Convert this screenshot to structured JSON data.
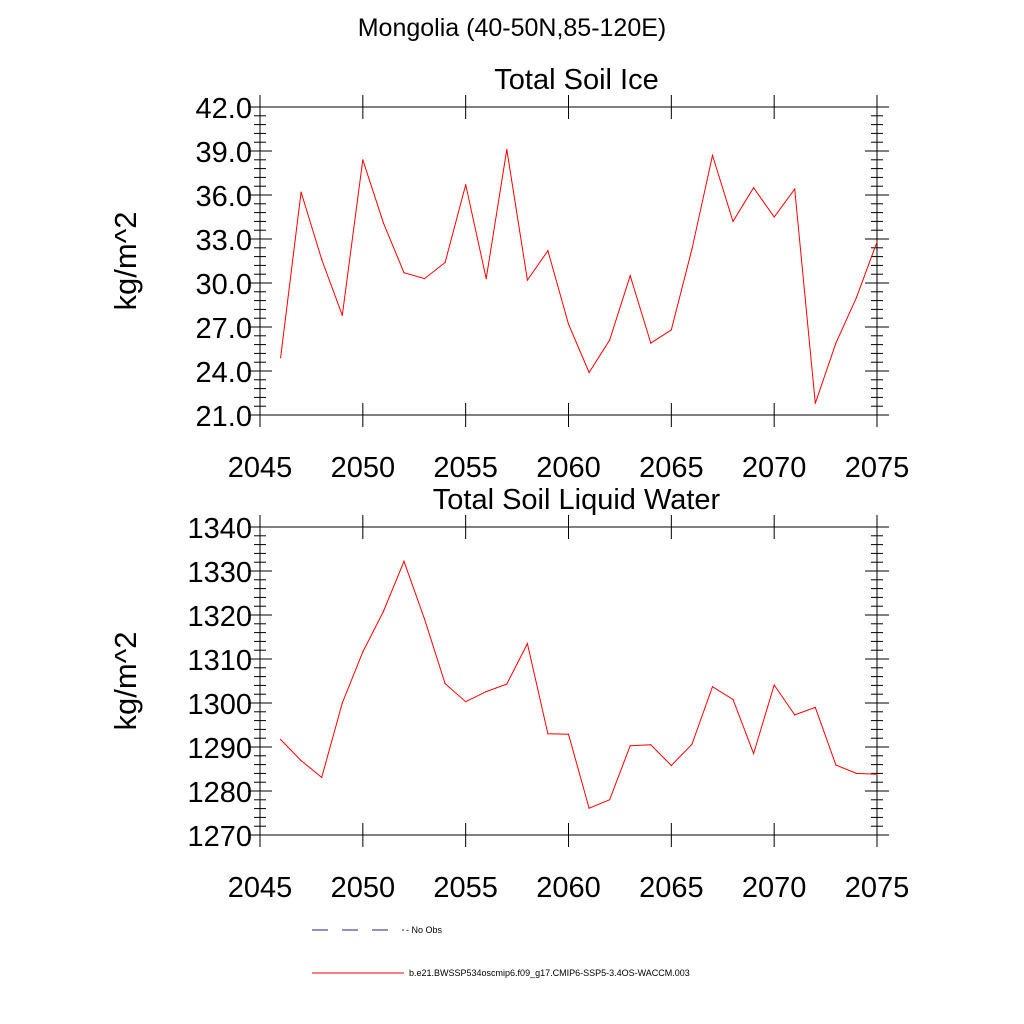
{
  "title": "Mongolia (40-50N,85-120E)",
  "colors": {
    "series": "#ff0000",
    "legend_obs": "#1f2a7a",
    "axis": "#000000"
  },
  "chart_data": [
    {
      "type": "line",
      "title": "Total Soil Ice",
      "xlabel": "",
      "ylabel": "kg/m^2",
      "xlim": [
        2045,
        2075
      ],
      "ylim": [
        21.0,
        42.0
      ],
      "xticks": [
        "2045",
        "2050",
        "2055",
        "2060",
        "2065",
        "2070",
        "2075"
      ],
      "yticks": [
        "21.0",
        "24.0",
        "27.0",
        "30.0",
        "33.0",
        "36.0",
        "39.0",
        "42.0"
      ],
      "x": [
        2046,
        2047,
        2048,
        2049,
        2050,
        2051,
        2052,
        2053,
        2054,
        2055,
        2056,
        2057,
        2058,
        2059,
        2060,
        2061,
        2062,
        2063,
        2064,
        2065,
        2066,
        2067,
        2068,
        2069,
        2070,
        2071,
        2072,
        2073,
        2074,
        2075
      ],
      "series": [
        {
          "name": "b.e21.BWSSP534oscmip6.f09_g17.CMIP6-SSP5-3.4OS-WACCM.003",
          "values": [
            24.9,
            36.2,
            31.6,
            27.8,
            38.4,
            34.1,
            30.7,
            30.3,
            31.4,
            36.7,
            30.3,
            39.1,
            30.2,
            32.2,
            27.2,
            23.9,
            26.1,
            30.5,
            25.9,
            26.8,
            32.3,
            38.7,
            34.2,
            36.5,
            34.5,
            36.4,
            21.8,
            25.9,
            29.0,
            32.8
          ]
        }
      ]
    },
    {
      "type": "line",
      "title": "Total Soil Liquid Water",
      "xlabel": "",
      "ylabel": "kg/m^2",
      "xlim": [
        2045,
        2075
      ],
      "ylim": [
        1270,
        1340
      ],
      "xticks": [
        "2045",
        "2050",
        "2055",
        "2060",
        "2065",
        "2070",
        "2075"
      ],
      "yticks": [
        "1270",
        "1280",
        "1290",
        "1300",
        "1310",
        "1320",
        "1330",
        "1340"
      ],
      "x": [
        2046,
        2047,
        2048,
        2049,
        2050,
        2051,
        2052,
        2053,
        2054,
        2055,
        2056,
        2057,
        2058,
        2059,
        2060,
        2061,
        2062,
        2063,
        2064,
        2065,
        2066,
        2067,
        2068,
        2069,
        2070,
        2071,
        2072,
        2073,
        2074,
        2075
      ],
      "series": [
        {
          "name": "b.e21.BWSSP534oscmip6.f09_g17.CMIP6-SSP5-3.4OS-WACCM.003",
          "values": [
            1291.7,
            1286.9,
            1283.1,
            1300.0,
            1311.6,
            1320.8,
            1332.2,
            1319.1,
            1304.4,
            1300.3,
            1302.6,
            1304.3,
            1313.5,
            1293.0,
            1292.9,
            1276.1,
            1278.0,
            1290.3,
            1290.5,
            1285.8,
            1290.6,
            1303.7,
            1300.8,
            1288.5,
            1304.1,
            1297.3,
            1299.0,
            1285.9,
            1284.0,
            1283.8
          ]
        }
      ]
    }
  ],
  "legend": {
    "entries": [
      {
        "label": "No Obs",
        "style": "dashed"
      },
      {
        "label": "b.e21.BWSSP534oscmip6.f09_g17.CMIP6-SSP5-3.4OS-WACCM.003",
        "style": "solid"
      }
    ]
  }
}
